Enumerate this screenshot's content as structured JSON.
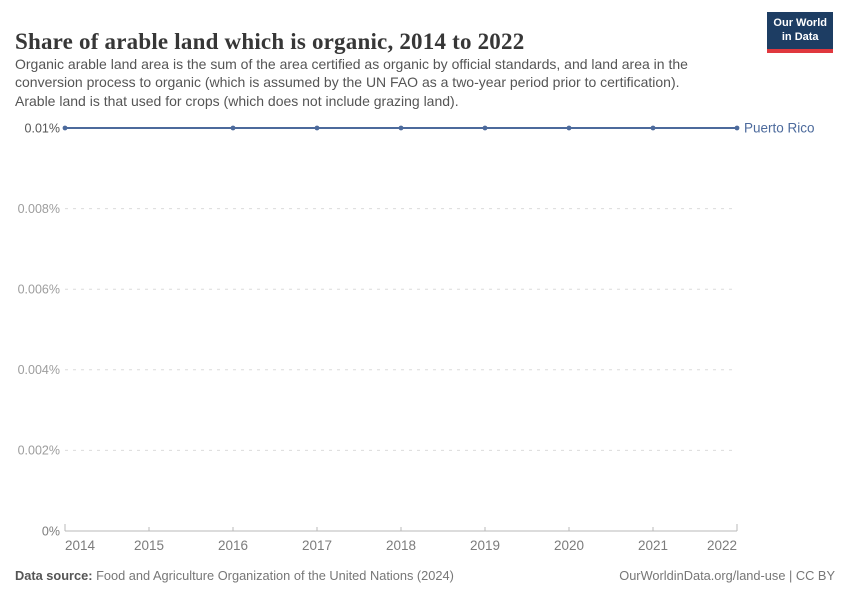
{
  "header": {
    "title": "Share of arable land which is organic, 2014 to 2022",
    "subtitle_lines": [
      "Organic arable land area is the sum of the area certified as organic by official standards, and land area in the",
      "conversion process to organic (which is assumed by the UN FAO as a two-year period prior to certification).",
      "Arable land is that used for crops (which does not include grazing land)."
    ],
    "logo": {
      "line1": "Our World",
      "line2": "in Data"
    }
  },
  "chart_data": {
    "type": "line",
    "title": "Share of arable land which is organic, 2014 to 2022",
    "xlabel": "",
    "ylabel": "",
    "xlim": [
      2014,
      2022
    ],
    "ylim": [
      0,
      0.01
    ],
    "grid": "horizontal-dashed",
    "x_ticks": [
      2014,
      2015,
      2016,
      2017,
      2018,
      2019,
      2020,
      2021,
      2022
    ],
    "y_ticks": [
      {
        "value": 0,
        "label": "0%"
      },
      {
        "value": 0.002,
        "label": "0.002%"
      },
      {
        "value": 0.004,
        "label": "0.004%"
      },
      {
        "value": 0.006,
        "label": "0.006%"
      },
      {
        "value": 0.008,
        "label": "0.008%"
      },
      {
        "value": 0.01,
        "label": "0.01%"
      }
    ],
    "legend_position": "right-of-line",
    "series": [
      {
        "name": "Puerto Rico",
        "color": "#4c6a9c",
        "points": [
          {
            "x": 2014,
            "y": 0.01
          },
          {
            "x": 2016,
            "y": 0.01
          },
          {
            "x": 2017,
            "y": 0.01
          },
          {
            "x": 2018,
            "y": 0.01
          },
          {
            "x": 2019,
            "y": 0.01
          },
          {
            "x": 2020,
            "y": 0.01
          },
          {
            "x": 2021,
            "y": 0.01
          },
          {
            "x": 2022,
            "y": 0.01
          }
        ]
      }
    ],
    "missing_years": [
      2015
    ]
  },
  "footer": {
    "datasource_label": "Data source:",
    "datasource": " Food and Agriculture Organization of the United Nations (2024)",
    "credit_link": "OurWorldinData.org/land-use",
    "credit_sep": " | ",
    "credit_license": "CC BY"
  }
}
